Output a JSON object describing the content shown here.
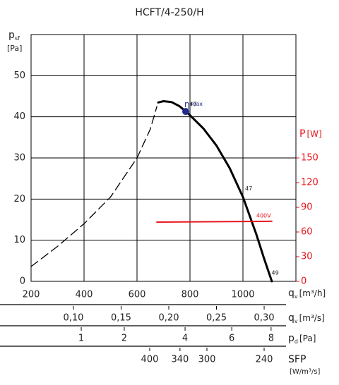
{
  "chart_data": {
    "type": "line",
    "title": "HCFT/4-250/H",
    "y_label": "p",
    "y_label_sub": "sf",
    "y_unit": "[Pa]",
    "y2_label": "P",
    "y2_unit": "[W]",
    "y2_color": "#e8141b",
    "x_label": "q",
    "x_label_sub": "v",
    "x_unit": "[m³/h]",
    "xlim": [
      200,
      1200
    ],
    "xticks": [
      200,
      400,
      600,
      800,
      1000
    ],
    "ylim": [
      0,
      60
    ],
    "yticks": [
      0,
      10,
      20,
      30,
      40,
      50
    ],
    "y2lim": [
      0,
      300
    ],
    "y2ticks": [
      0,
      30,
      60,
      90,
      120,
      150
    ],
    "grid": true,
    "extra_x_axes": [
      {
        "label": "q",
        "label_sub": "v",
        "unit": "[m³/s]",
        "scale": "linear",
        "xlim": [
          0.0556,
          0.3333
        ],
        "xticks": [
          {
            "value": 0.1,
            "label": "0,10"
          },
          {
            "value": 0.15,
            "label": "0,15"
          },
          {
            "value": 0.2,
            "label": "0,20"
          },
          {
            "value": 0.25,
            "label": "0,25"
          },
          {
            "value": 0.3,
            "label": "0,30"
          }
        ]
      },
      {
        "label": "p",
        "label_sub": "d",
        "unit": "[Pa]",
        "scale": "sqrt",
        "xlim": [
          0.267,
          9.41
        ],
        "xticks": [
          1,
          2,
          4,
          6,
          8
        ]
      },
      {
        "label": "SFP",
        "unit": "[W/m³/s]",
        "scale": "reciprocal",
        "xlim": [
          1295,
          216
        ],
        "xticks": [
          400,
          340,
          300,
          240
        ]
      }
    ],
    "series": [
      {
        "color": "#000000",
        "line_style": "dashed",
        "x": [
          200,
          300,
          400,
          500,
          600,
          650,
          675
        ],
        "values": [
          3.6,
          8.5,
          14,
          20.5,
          30,
          37,
          42.5
        ]
      },
      {
        "color": "#000000",
        "line_style": "solid",
        "x": [
          680,
          700,
          730,
          760,
          790,
          850,
          900,
          950,
          1000,
          1050,
          1080,
          1109
        ],
        "values": [
          43.5,
          43.8,
          43.6,
          42.6,
          41,
          37.2,
          33,
          27.5,
          20.5,
          11.5,
          5.5,
          0
        ]
      },
      {
        "name": "400V",
        "color": "#e8141b",
        "line_style": "solid",
        "axis": "y2",
        "x": [
          675,
          1109
        ],
        "values": [
          72,
          73
        ]
      }
    ],
    "eta_max": {
      "label": "η",
      "label_sub": "max",
      "x": 784,
      "y": 41.3,
      "color": "#1f2a8a"
    },
    "annotations": [
      {
        "text": "47",
        "x": 790,
        "y": 41
      },
      {
        "text": "47",
        "x": 1000,
        "y": 20.5
      },
      {
        "text": "49",
        "x": 1100,
        "y": 0
      }
    ]
  }
}
